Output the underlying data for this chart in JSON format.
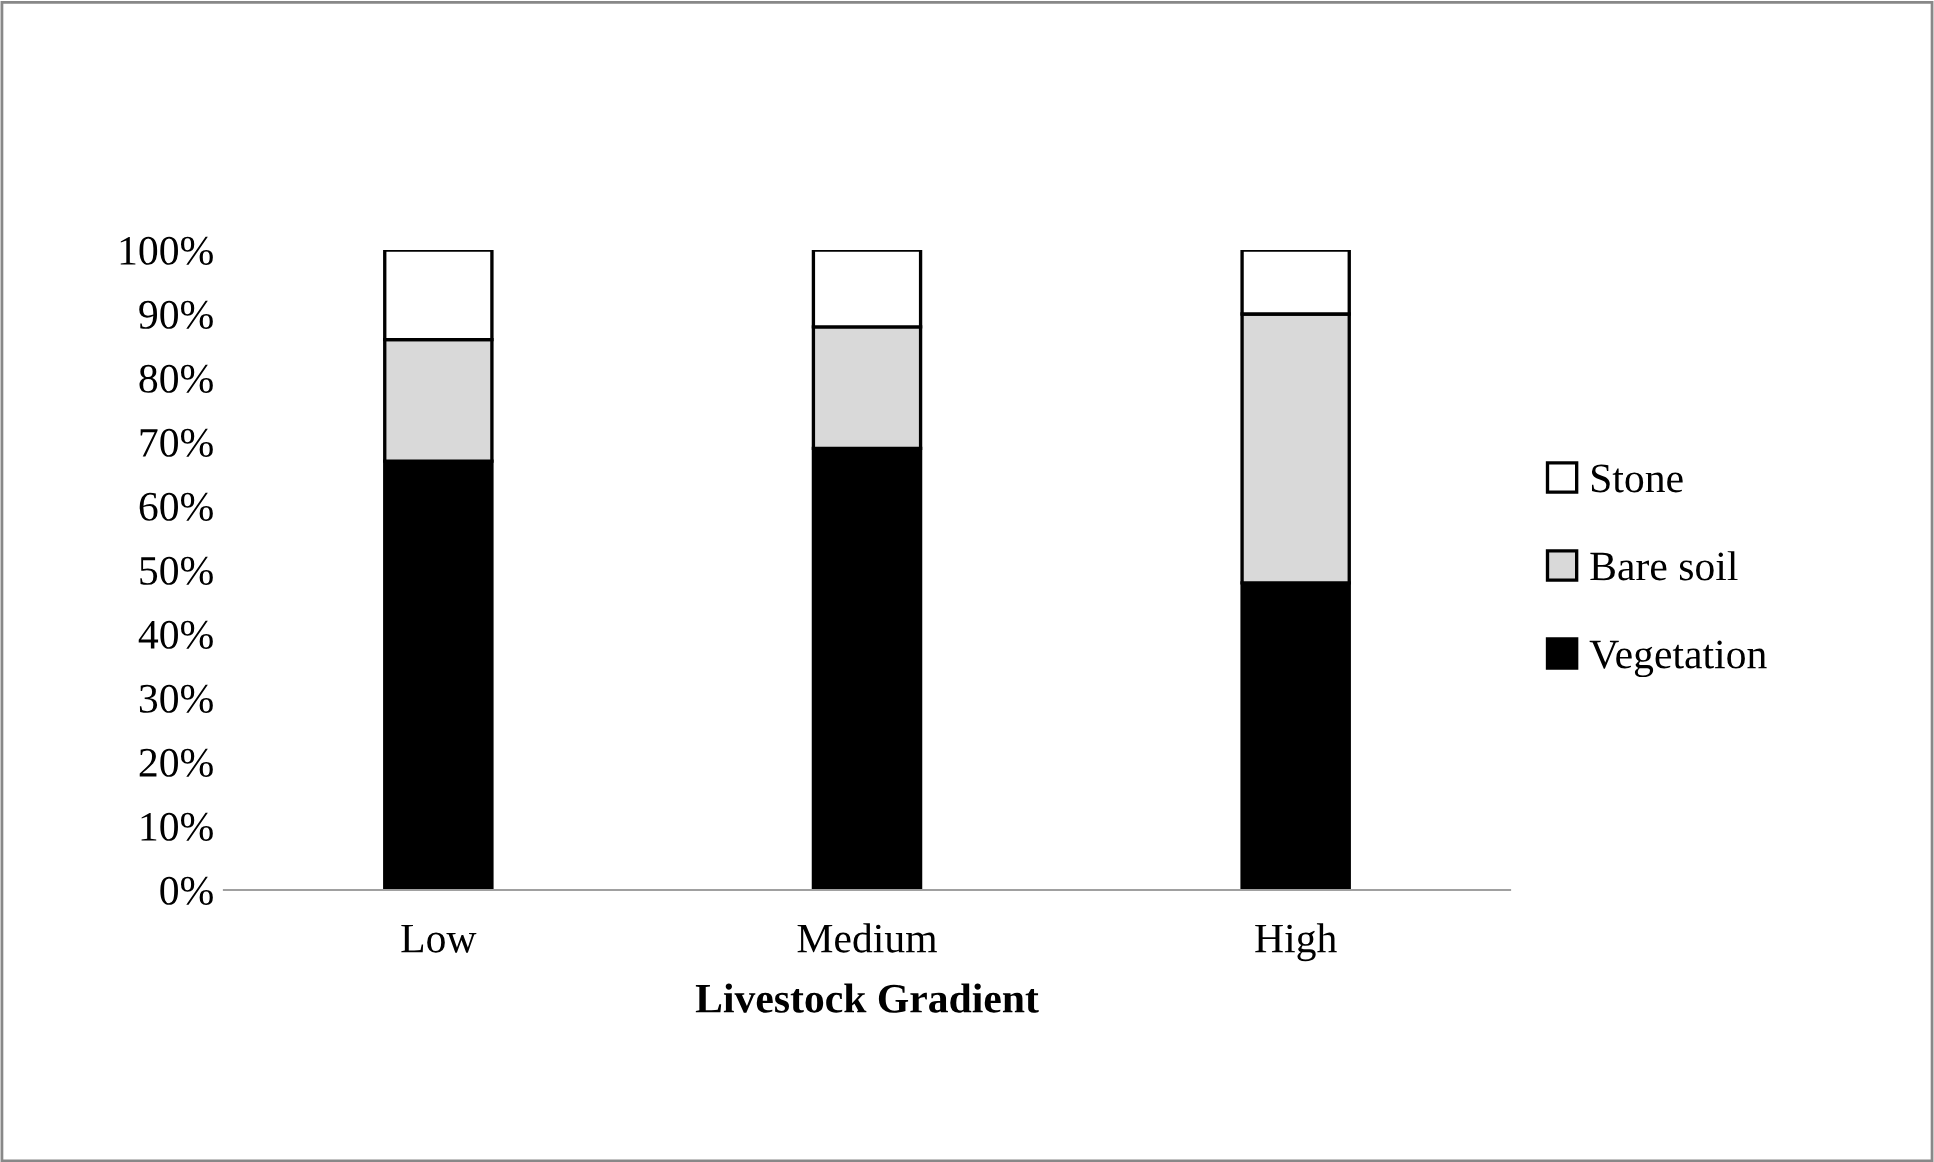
{
  "chart_data": {
    "type": "bar",
    "stacked": true,
    "xlabel": "Livestock Gradient",
    "categories": [
      "Low",
      "Medium",
      "High"
    ],
    "series": [
      {
        "name": "Vegetation",
        "color": "#000000",
        "values": [
          67,
          69,
          48
        ]
      },
      {
        "name": "Bare soil",
        "color": "#d9d9d9",
        "values": [
          19,
          19,
          42
        ]
      },
      {
        "name": "Stone",
        "color": "#ffffff",
        "values": [
          14,
          12,
          10
        ]
      }
    ],
    "ylim": [
      0,
      100
    ],
    "yticks": [
      {
        "value": 0,
        "label": "0%"
      },
      {
        "value": 10,
        "label": "10%"
      },
      {
        "value": 20,
        "label": "20%"
      },
      {
        "value": 30,
        "label": "30%"
      },
      {
        "value": 40,
        "label": "40%"
      },
      {
        "value": 50,
        "label": "50%"
      },
      {
        "value": 60,
        "label": "60%"
      },
      {
        "value": 70,
        "label": "70%"
      },
      {
        "value": 80,
        "label": "80%"
      },
      {
        "value": 90,
        "label": "90%"
      },
      {
        "value": 100,
        "label": "100%"
      }
    ],
    "grid": false,
    "legend": "right"
  }
}
